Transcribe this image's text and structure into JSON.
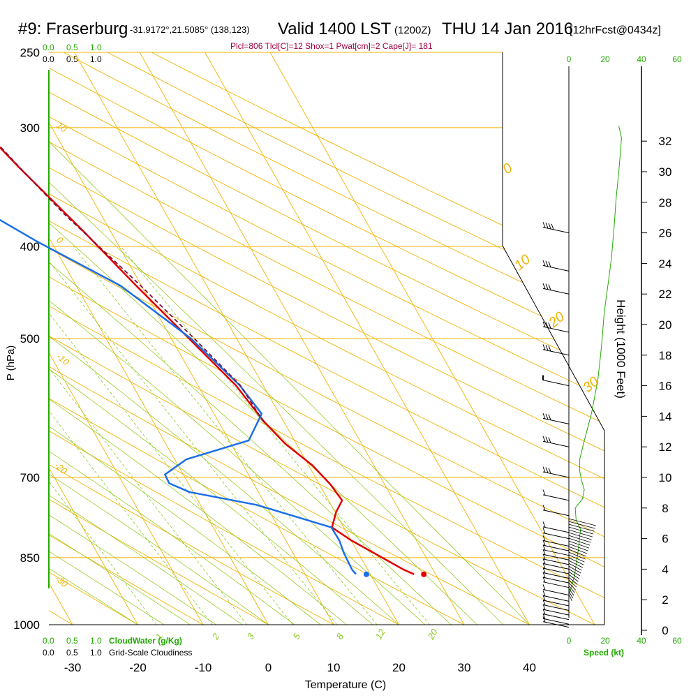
{
  "header": {
    "station": "#9: Fraserburg",
    "coords": "-31.9172°,21.5085° (138,123)",
    "valid": "Valid 1400 LST",
    "zulu": "(1200Z)",
    "date": "THU 14 Jan 2016",
    "forecast": "[12hrFcst@0434z]"
  },
  "params_line": "Plcl=806 Tlcl[C]=12 Shox=1 Pwat[cm]=2 Cape[J]= 181",
  "scales": {
    "cloudwater": [
      "0.0",
      "0.5",
      "1.0"
    ],
    "cloudiness": [
      "0.0",
      "0.5",
      "1.0"
    ],
    "cloudwater_label": "CloudWater (g/Kg)",
    "cloudiness_label": "Grid-Scale Cloudiness",
    "speed_ticks": [
      "0",
      "20",
      "40",
      "60"
    ],
    "speed_label": "Speed (kt)"
  },
  "colors": {
    "isotherm": "#f0b400",
    "dry_adiabat": "#f0b400",
    "moist_adiabat": "#99cc22",
    "mixing_ratio": "#88cc22",
    "temperature": "#e00000",
    "dewpoint": "#1a6fe8",
    "parcel": "#7a1040",
    "green_label": "#22aa00",
    "params": "#a00040"
  },
  "chart_data": {
    "type": "line",
    "subtype": "skew-T log-P sounding",
    "xlabel": "Temperature (C)",
    "ylabel": "P (hPa)",
    "y2label": "Height (1000 Feet)",
    "x_ticks": [
      -30,
      -20,
      -10,
      0,
      10,
      20,
      30,
      40
    ],
    "p_ticks": [
      250,
      300,
      400,
      500,
      700,
      850,
      1000
    ],
    "height_ticks": [
      0,
      2,
      4,
      6,
      8,
      10,
      12,
      14,
      16,
      18,
      20,
      22,
      24,
      26,
      28,
      30,
      32
    ],
    "dry_adiabat_labels": [
      "10",
      "0",
      "-10",
      "-20",
      "-30"
    ],
    "moist_adiabat_labels": [
      "0",
      "10",
      "20",
      "30"
    ],
    "mixing_ratio_labels": [
      "1",
      "2",
      "3",
      "5",
      "8",
      "12",
      "20"
    ],
    "series": [
      {
        "name": "Temperature",
        "points": [
          [
            26.7,
            885
          ],
          [
            25.5,
            875
          ],
          [
            20.0,
            815
          ],
          [
            18.2,
            790
          ],
          [
            20.1,
            762
          ],
          [
            22.1,
            740
          ],
          [
            21.7,
            712
          ],
          [
            20.6,
            680
          ],
          [
            18.3,
            645
          ],
          [
            17.0,
            612
          ],
          [
            15.8,
            560
          ],
          [
            12.7,
            500
          ],
          [
            9.2,
            440
          ],
          [
            5.8,
            385
          ],
          [
            1.5,
            330
          ],
          [
            -1.7,
            290
          ],
          [
            -4.3,
            262
          ]
        ]
      },
      {
        "name": "Dewpoint",
        "points": [
          [
            17.8,
            885
          ],
          [
            17.6,
            875
          ],
          [
            17.8,
            840
          ],
          [
            18.2,
            815
          ],
          [
            18.1,
            790
          ],
          [
            8.6,
            748
          ],
          [
            -0.6,
            725
          ],
          [
            -2.9,
            710
          ],
          [
            -2.8,
            695
          ],
          [
            1.8,
            670
          ],
          [
            13.0,
            640
          ],
          [
            17.3,
            600
          ],
          [
            16.4,
            560
          ],
          [
            13.0,
            500
          ],
          [
            6.8,
            440
          ],
          [
            -2.2,
            395
          ],
          [
            -10.0,
            355
          ],
          [
            -17.7,
            308
          ],
          [
            -23.5,
            280
          ],
          [
            -26.6,
            262
          ]
        ]
      },
      {
        "name": "Parcel",
        "points": [
          [
            16.9,
            612
          ],
          [
            16.5,
            560
          ],
          [
            13.5,
            500
          ],
          [
            9.9,
            440
          ],
          [
            6.9,
            400
          ],
          [
            4.4,
            370
          ],
          [
            2.3,
            340
          ],
          [
            -0.6,
            300
          ],
          [
            -3.9,
            262
          ]
        ]
      }
    ],
    "surface_markers": {
      "temperature": 28.2,
      "dewpoint": 19.4
    },
    "speed_profile": [
      [
        0.5,
        2.5
      ],
      [
        3,
        3.5
      ],
      [
        5.5,
        5.5
      ],
      [
        6,
        6.2
      ],
      [
        6.5,
        6.6
      ],
      [
        4,
        7.2
      ],
      [
        3.5,
        8.0
      ],
      [
        7.5,
        8.6
      ],
      [
        8.5,
        9.2
      ],
      [
        7,
        9.8
      ],
      [
        6,
        10.4
      ],
      [
        6,
        11.2
      ],
      [
        8.5,
        12.4
      ],
      [
        12.5,
        14.2
      ],
      [
        16,
        16.4
      ],
      [
        18,
        18.6
      ],
      [
        19.5,
        20.8
      ],
      [
        22,
        23.0
      ],
      [
        23.5,
        24.4
      ],
      [
        25,
        26.5
      ],
      [
        26,
        28.2
      ],
      [
        27.5,
        30.0
      ],
      [
        28.5,
        31.4
      ],
      [
        29,
        32.2
      ],
      [
        27.5,
        33.0
      ]
    ],
    "wind_barb_levels": [
      [
        26,
        4
      ],
      [
        23.5,
        3
      ],
      [
        22,
        3
      ],
      [
        19.5,
        3
      ],
      [
        18,
        3
      ],
      [
        16,
        0
      ],
      [
        13.5,
        3
      ],
      [
        12,
        3
      ],
      [
        10,
        3
      ],
      [
        8.5,
        1
      ],
      [
        7.5,
        1
      ],
      [
        6.4,
        1
      ],
      [
        6,
        1
      ],
      [
        5.5,
        1
      ],
      [
        5.2,
        1
      ],
      [
        4.9,
        1
      ],
      [
        4.6,
        1
      ],
      [
        4.3,
        1
      ],
      [
        4.0,
        1
      ],
      [
        3.7,
        1
      ],
      [
        3.4,
        1
      ],
      [
        3.1,
        1
      ],
      [
        2.8,
        1
      ],
      [
        2.3,
        1
      ],
      [
        1.9,
        1
      ],
      [
        1.6,
        1
      ],
      [
        1.3,
        1
      ],
      [
        1.0,
        1
      ],
      [
        0.7,
        1
      ],
      [
        0.4,
        1
      ],
      [
        0.2,
        1
      ]
    ]
  }
}
